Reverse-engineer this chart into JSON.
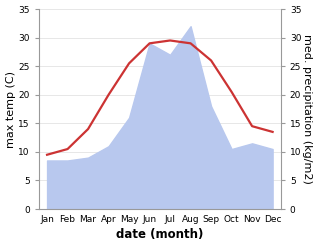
{
  "months": [
    "Jan",
    "Feb",
    "Mar",
    "Apr",
    "May",
    "Jun",
    "Jul",
    "Aug",
    "Sep",
    "Oct",
    "Nov",
    "Dec"
  ],
  "temperature": [
    9.5,
    10.5,
    14.0,
    20.0,
    25.5,
    29.0,
    29.5,
    29.0,
    26.0,
    20.5,
    14.5,
    13.5
  ],
  "precipitation": [
    8.5,
    8.5,
    9.0,
    11.0,
    16.0,
    29.0,
    27.0,
    32.0,
    18.0,
    10.5,
    11.5,
    10.5
  ],
  "temp_color": "#cc3333",
  "precip_color": "#b8c8ee",
  "temp_ylim": [
    0,
    35
  ],
  "precip_ylim": [
    0,
    35
  ],
  "yticks": [
    0,
    5,
    10,
    15,
    20,
    25,
    30,
    35
  ],
  "ylabel_left": "max temp (C)",
  "ylabel_right": "med. precipitation (kg/m2)",
  "xlabel": "date (month)",
  "background_color": "#ffffff",
  "spine_color": "#999999",
  "grid_color": "#dddddd",
  "tick_label_size": 6.5,
  "axis_label_size": 8,
  "xlabel_size": 8.5
}
